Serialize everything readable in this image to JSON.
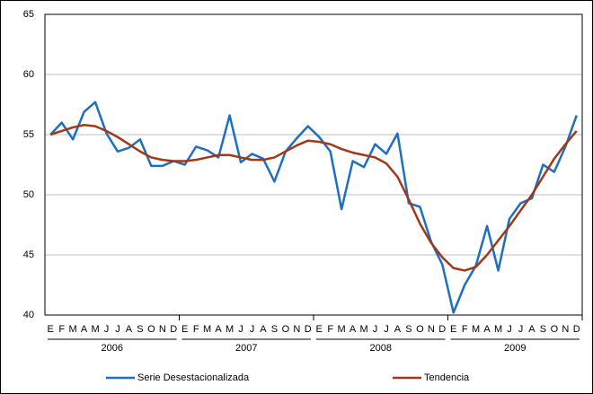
{
  "chart_data": {
    "type": "line",
    "categories": [
      "E",
      "F",
      "M",
      "A",
      "M",
      "J",
      "J",
      "A",
      "S",
      "O",
      "N",
      "D",
      "E",
      "F",
      "M",
      "A",
      "M",
      "J",
      "J",
      "A",
      "S",
      "O",
      "N",
      "D",
      "E",
      "F",
      "M",
      "A",
      "M",
      "J",
      "J",
      "A",
      "S",
      "O",
      "N",
      "D",
      "E",
      "F",
      "M",
      "A",
      "M",
      "J",
      "J",
      "A",
      "S",
      "O",
      "N",
      "D"
    ],
    "years": [
      "2006",
      "2007",
      "2008",
      "2009"
    ],
    "series": [
      {
        "name": "Serie Desestacionalizada",
        "color": "#1f6fc1",
        "values": [
          55.0,
          56.0,
          54.6,
          56.9,
          57.7,
          55.1,
          53.6,
          53.9,
          54.6,
          52.4,
          52.4,
          52.8,
          52.5,
          54.0,
          53.7,
          53.1,
          56.6,
          52.7,
          53.4,
          53.0,
          51.1,
          53.6,
          54.7,
          55.7,
          54.8,
          53.6,
          48.8,
          52.8,
          52.3,
          54.2,
          53.4,
          55.1,
          49.3,
          49.0,
          46.1,
          44.2,
          40.2,
          42.5,
          44.1,
          47.4,
          43.7,
          48.0,
          49.3,
          49.7,
          52.5,
          51.9,
          54.0,
          56.6
        ]
      },
      {
        "name": "Tendencia",
        "color": "#a0391a",
        "values": [
          55.0,
          55.3,
          55.6,
          55.8,
          55.7,
          55.3,
          54.8,
          54.2,
          53.6,
          53.1,
          52.9,
          52.8,
          52.8,
          52.9,
          53.1,
          53.3,
          53.3,
          53.1,
          52.9,
          52.9,
          53.1,
          53.6,
          54.1,
          54.5,
          54.4,
          54.2,
          53.8,
          53.5,
          53.3,
          53.1,
          52.6,
          51.5,
          49.6,
          47.6,
          46.0,
          44.8,
          43.9,
          43.7,
          44.0,
          45.0,
          46.2,
          47.4,
          48.7,
          50.0,
          51.5,
          53.0,
          54.2,
          55.3
        ]
      }
    ],
    "ylim": [
      40,
      65
    ],
    "yticks": [
      40,
      45,
      50,
      55,
      60,
      65
    ],
    "grid": true,
    "legend": "bottom"
  }
}
